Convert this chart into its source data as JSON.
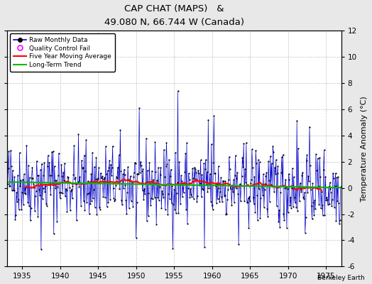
{
  "title": "CAP CHAT (MAPS)   &",
  "subtitle": "49.080 N, 66.744 W (Canada)",
  "watermark": "Berkeley Earth",
  "ylabel": "Temperature Anomaly (°C)",
  "xlim": [
    1933.0,
    1977.0
  ],
  "ylim": [
    -6,
    12
  ],
  "yticks": [
    -6,
    -4,
    -2,
    0,
    2,
    4,
    6,
    8,
    10,
    12
  ],
  "xticks": [
    1935,
    1940,
    1945,
    1950,
    1955,
    1960,
    1965,
    1970,
    1975
  ],
  "bg_color": "#e8e8e8",
  "plot_bg_color": "#ffffff",
  "line_color": "#0000cc",
  "marker_color": "#000000",
  "moving_avg_color": "#ff0000",
  "trend_color": "#00bb00",
  "qc_color": "#ff00ff",
  "start_year": 1933,
  "end_year": 1976,
  "seed": 42,
  "figwidth": 5.24,
  "figheight": 4.0,
  "dpi": 100
}
